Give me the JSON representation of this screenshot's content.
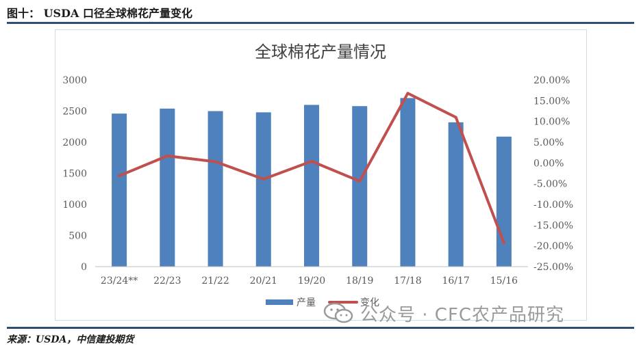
{
  "figure": {
    "caption": "图十： USDA 口径全球棉花产量变化",
    "source": "来源：USDA，中信建投期货"
  },
  "watermark": {
    "text": "公众号 · CFC农产品研究",
    "icon": "wechat-icon"
  },
  "colors": {
    "bar": "#4f81bd",
    "line": "#c0504d",
    "rule": "#2e4e73"
  },
  "chart_data": {
    "type": "bar",
    "title": "全球棉花产量情况",
    "categories": [
      "23/24**",
      "22/23",
      "21/22",
      "20/21",
      "19/20",
      "18/19",
      "17/18",
      "16/17",
      "15/16"
    ],
    "series": [
      {
        "name": "产量",
        "type": "bar",
        "axis": "left",
        "values": [
          2460,
          2540,
          2500,
          2480,
          2600,
          2580,
          2710,
          2320,
          2090
        ]
      },
      {
        "name": "变化",
        "type": "line",
        "axis": "right",
        "values": [
          -3.1,
          1.7,
          0.3,
          -3.9,
          0.4,
          -4.4,
          16.8,
          11.0,
          -19.3
        ]
      }
    ],
    "y_left": {
      "min": 0,
      "max": 3000,
      "ticks": [
        "0",
        "500",
        "1000",
        "1500",
        "2000",
        "2500",
        "3000"
      ]
    },
    "y_right": {
      "min": -25,
      "max": 20,
      "ticks": [
        "-25.00%",
        "-20.00%",
        "-15.00%",
        "-10.00%",
        "-5.00%",
        "0.00%",
        "5.00%",
        "10.00%",
        "15.00%",
        "20.00%"
      ]
    },
    "grid": false,
    "legend_position": "bottom"
  }
}
